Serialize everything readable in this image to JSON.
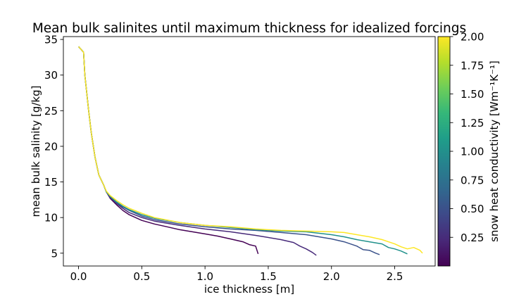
{
  "chart_data": {
    "type": "line",
    "title": "Mean bulk salinites until maximum thickness for idealized forcings",
    "xlabel": "ice thickness [m]",
    "ylabel": "mean bulk salinity [g/kg]",
    "xlim": [
      -0.12,
      2.82
    ],
    "ylim": [
      3.2,
      35.4
    ],
    "xticks": [
      0.0,
      0.5,
      1.0,
      1.5,
      2.0,
      2.5
    ],
    "xtick_labels": [
      "0.0",
      "0.5",
      "1.0",
      "1.5",
      "2.0",
      "2.5"
    ],
    "yticks": [
      5,
      10,
      15,
      20,
      25,
      30,
      35
    ],
    "ytick_labels": [
      "5",
      "10",
      "15",
      "20",
      "25",
      "30",
      "35"
    ],
    "grid": false,
    "legend": "none",
    "colorbar": {
      "label": "snow heat conductivity [Wm⁻¹K⁻¹]",
      "range": [
        0.0,
        2.0
      ],
      "ticks": [
        0.25,
        0.5,
        0.75,
        1.0,
        1.25,
        1.5,
        1.75,
        2.0
      ],
      "tick_labels": [
        "0.25",
        "0.50",
        "0.75",
        "1.00",
        "1.25",
        "1.50",
        "1.75",
        "2.00"
      ],
      "colormap": [
        "#440154",
        "#482878",
        "#3e4989",
        "#31688e",
        "#26828e",
        "#1f9e89",
        "#35b779",
        "#6ece58",
        "#b5de2b",
        "#fde725"
      ]
    },
    "series": [
      {
        "conductivity": 0.0,
        "color": "#440154",
        "x": [
          0.0,
          0.04,
          0.05,
          0.08,
          0.1,
          0.13,
          0.16,
          0.2,
          0.22,
          0.25,
          0.3,
          0.35,
          0.4,
          0.5,
          0.6,
          0.7,
          0.8,
          0.9,
          1.0,
          1.1,
          1.2,
          1.3,
          1.35,
          1.4,
          1.42
        ],
        "y": [
          34.0,
          33.2,
          30.0,
          25.0,
          22.0,
          18.5,
          16.0,
          14.5,
          13.6,
          12.7,
          11.8,
          11.0,
          10.4,
          9.6,
          9.1,
          8.7,
          8.3,
          8.0,
          7.7,
          7.4,
          7.0,
          6.6,
          6.2,
          6.0,
          4.9
        ]
      },
      {
        "conductivity": 0.25,
        "color": "#472a7a",
        "x": [
          0.0,
          0.04,
          0.05,
          0.08,
          0.1,
          0.13,
          0.16,
          0.2,
          0.22,
          0.25,
          0.3,
          0.35,
          0.4,
          0.5,
          0.6,
          0.8,
          1.0,
          1.2,
          1.4,
          1.6,
          1.7,
          1.75,
          1.8,
          1.85,
          1.88
        ],
        "y": [
          34.0,
          33.2,
          30.0,
          25.0,
          22.0,
          18.5,
          16.0,
          14.5,
          13.6,
          12.8,
          12.0,
          11.3,
          10.7,
          10.0,
          9.5,
          8.9,
          8.4,
          8.0,
          7.5,
          6.9,
          6.5,
          6.0,
          5.6,
          5.1,
          4.7
        ]
      },
      {
        "conductivity": 0.5,
        "color": "#3b528b",
        "x": [
          0.0,
          0.04,
          0.05,
          0.08,
          0.1,
          0.13,
          0.16,
          0.2,
          0.22,
          0.25,
          0.3,
          0.35,
          0.4,
          0.5,
          0.6,
          0.8,
          1.0,
          1.2,
          1.4,
          1.6,
          1.8,
          2.0,
          2.1,
          2.2,
          2.25,
          2.3,
          2.35,
          2.38
        ],
        "y": [
          34.0,
          33.2,
          30.0,
          25.0,
          22.0,
          18.5,
          16.0,
          14.5,
          13.6,
          12.9,
          12.1,
          11.5,
          11.0,
          10.2,
          9.7,
          9.1,
          8.7,
          8.4,
          8.2,
          7.9,
          7.6,
          7.0,
          6.6,
          6.0,
          5.5,
          5.4,
          5.0,
          4.8
        ]
      },
      {
        "conductivity": 1.0,
        "color": "#21918c",
        "x": [
          0.0,
          0.04,
          0.05,
          0.08,
          0.1,
          0.13,
          0.16,
          0.2,
          0.22,
          0.25,
          0.3,
          0.35,
          0.4,
          0.5,
          0.6,
          0.8,
          1.0,
          1.2,
          1.4,
          1.6,
          1.8,
          2.0,
          2.1,
          2.2,
          2.3,
          2.4,
          2.45,
          2.5,
          2.55,
          2.6
        ],
        "y": [
          34.0,
          33.2,
          30.0,
          25.0,
          22.0,
          18.5,
          16.0,
          14.5,
          13.6,
          13.0,
          12.2,
          11.6,
          11.1,
          10.4,
          9.9,
          9.3,
          8.9,
          8.6,
          8.3,
          8.1,
          8.0,
          7.6,
          7.3,
          6.9,
          6.6,
          6.3,
          5.8,
          5.6,
          5.3,
          4.9
        ]
      },
      {
        "conductivity": 2.0,
        "color": "#fde725",
        "x": [
          0.0,
          0.04,
          0.05,
          0.08,
          0.1,
          0.13,
          0.16,
          0.2,
          0.22,
          0.25,
          0.3,
          0.35,
          0.4,
          0.5,
          0.6,
          0.8,
          1.0,
          1.2,
          1.4,
          1.6,
          1.8,
          2.0,
          2.1,
          2.2,
          2.3,
          2.4,
          2.45,
          2.5,
          2.55,
          2.6,
          2.65,
          2.7,
          2.72
        ],
        "y": [
          34.0,
          33.2,
          30.0,
          25.0,
          22.0,
          18.5,
          16.0,
          14.5,
          13.7,
          13.1,
          12.4,
          11.8,
          11.3,
          10.6,
          10.0,
          9.3,
          8.9,
          8.7,
          8.4,
          8.2,
          8.1,
          8.0,
          7.9,
          7.6,
          7.3,
          6.9,
          6.6,
          6.3,
          5.9,
          5.6,
          5.8,
          5.4,
          5.0
        ]
      }
    ]
  }
}
